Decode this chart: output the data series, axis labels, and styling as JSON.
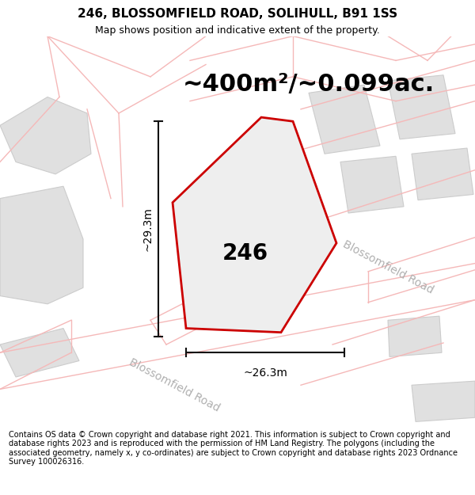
{
  "title": "246, BLOSSOMFIELD ROAD, SOLIHULL, B91 1SS",
  "subtitle": "Map shows position and indicative extent of the property.",
  "area_label": "~400m²/~0.099ac.",
  "width_label": "~26.3m",
  "height_label": "~29.3m",
  "number_label": "246",
  "footer": "Contains OS data © Crown copyright and database right 2021. This information is subject to Crown copyright and database rights 2023 and is reproduced with the permission of HM Land Registry. The polygons (including the associated geometry, namely x, y co-ordinates) are subject to Crown copyright and database rights 2023 Ordnance Survey 100026316.",
  "bg_color": "#ffffff",
  "pink": "#f5b8b8",
  "gray_block": "#e0e0e0",
  "gray_block_edge": "#cccccc",
  "red_poly": "#cc0000",
  "red_poly_fill": "#eeeeee",
  "dim_color": "#111111",
  "road_label_color": "#b0b0b0",
  "title_fontsize": 11,
  "subtitle_fontsize": 9,
  "area_fontsize": 22,
  "num_fontsize": 20,
  "dim_fontsize": 10,
  "road_label_fontsize": 10
}
